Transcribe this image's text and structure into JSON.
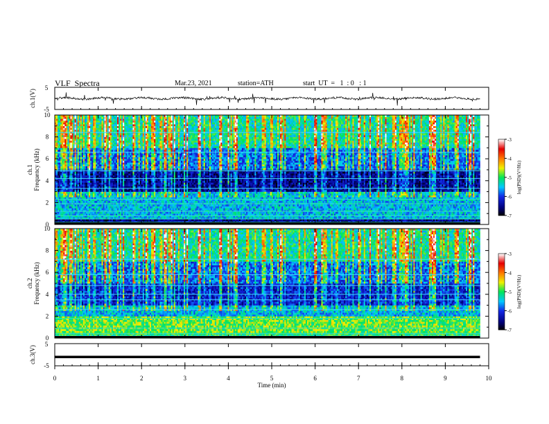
{
  "header": {
    "title": "VLF  Spectra",
    "date": "Mar.23, 2021",
    "station": "station=ATH",
    "start": "start  UT  =   1  : 0   : 1"
  },
  "chart_data": [
    {
      "type": "line",
      "ylabel": "ch.1(V)",
      "ylim": [
        -5,
        5
      ],
      "yticks": [
        "5",
        "-5"
      ],
      "xlim": [
        0,
        10
      ],
      "baseline_approx": 0
    },
    {
      "type": "heatmap",
      "ylabel": "ch.1\nFrequency  (kHz)",
      "ylabel_lines": [
        "ch.1",
        "Frequency  (kHz)"
      ],
      "ylim": [
        0,
        10
      ],
      "yticks": [
        "0",
        "2",
        "4",
        "6",
        "8",
        "10"
      ],
      "xlim": [
        0,
        10
      ],
      "data_extent_min": [
        0,
        9.8
      ],
      "colorbar": {
        "label": "log(PSD)(V²/Hz)",
        "range": [
          -7,
          -3
        ],
        "ticks": [
          "-3",
          "-4",
          "-5",
          "-6",
          "-7"
        ]
      },
      "background_psd_approx": {
        "0-0.5kHz": -6.5,
        "0.5-2kHz": -5.5,
        "2-3kHz": -5.5,
        "3-5kHz": -6.5,
        "5-7kHz": -5.8,
        "7-10kHz": -5.2
      }
    },
    {
      "type": "heatmap",
      "ylabel": "ch.2\nFrequency  (kHz)",
      "ylabel_lines": [
        "ch.2",
        "Frequency  (kHz)"
      ],
      "ylim": [
        0,
        10
      ],
      "yticks": [
        "0",
        "2",
        "4",
        "6",
        "8",
        "10"
      ],
      "xlim": [
        0,
        10
      ],
      "data_extent_min": [
        0,
        9.8
      ],
      "colorbar": {
        "label": "log(PSD)(V²/Hz)",
        "range": [
          -7,
          -3
        ],
        "ticks": [
          "-3",
          "-4",
          "-5",
          "-6",
          "-7"
        ]
      },
      "background_psd_approx": {
        "0-0.5kHz": -5.0,
        "0.5-2kHz": -4.8,
        "2-3kHz": -5.5,
        "3-5kHz": -6.2,
        "5-7kHz": -5.8,
        "7-10kHz": -5.2
      }
    },
    {
      "type": "line",
      "ylabel": "ch.3(V)",
      "ylim": [
        -5,
        5
      ],
      "yticks": [
        "5",
        "-5"
      ],
      "xlim": [
        0,
        10
      ],
      "baseline_approx": -1
    }
  ],
  "x_axis": {
    "label": "Time  (min)",
    "ticks": [
      "0",
      "1",
      "2",
      "3",
      "4",
      "5",
      "6",
      "7",
      "8",
      "9",
      "10"
    ]
  }
}
